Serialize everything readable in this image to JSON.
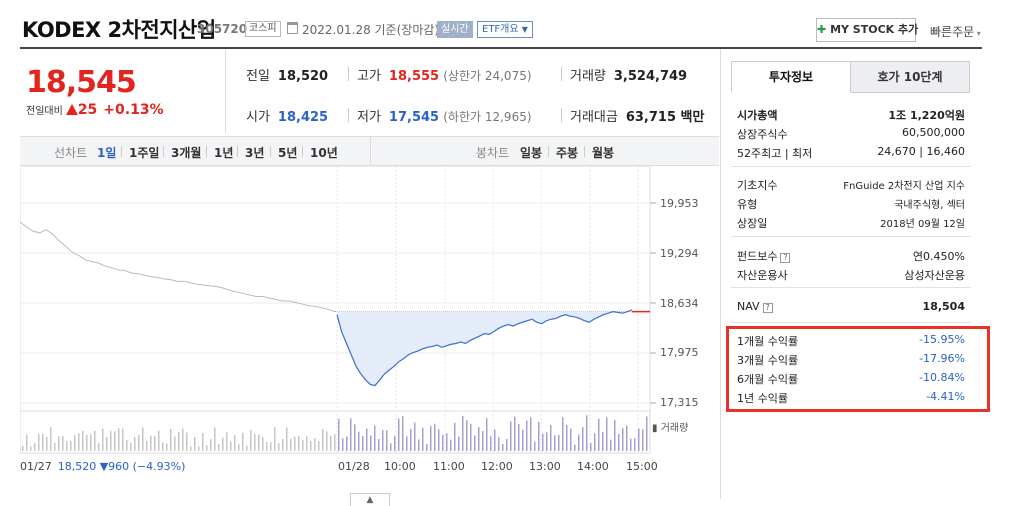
{
  "header": {
    "title": "KODEX 2차전지산업",
    "code": "305720",
    "market_badge": "코스피",
    "date": "2022.01.28 기준(장마감)",
    "live_badge": "실시간",
    "etf_badge": "ETF개요",
    "mystock_label": "MY STOCK 추가",
    "quick_order_label": "빠른주문"
  },
  "price": {
    "current": "18,545",
    "change_label": "전일대비",
    "change_value": "25",
    "change_pct": "+0.13%"
  },
  "stats": {
    "prev_close_label": "전일",
    "prev_close": "18,520",
    "high_label": "고가",
    "high": "18,555",
    "upper_limit_label": "(상한가 24,075)",
    "volume_label": "거래량",
    "volume": "3,524,749",
    "open_label": "시가",
    "open": "18,425",
    "low_label": "저가",
    "low": "17,545",
    "lower_limit_label": "(하한가 12,965)",
    "amount_label": "거래대금",
    "amount": "63,715 백만"
  },
  "chart_tabs": {
    "line_label": "선차트",
    "periods": [
      "1일",
      "1주일",
      "3개월",
      "1년",
      "3년",
      "5년",
      "10년"
    ],
    "candle_label": "봉차트",
    "candles": [
      "일봉",
      "주봉",
      "월봉"
    ]
  },
  "chart_data": {
    "type": "line",
    "y_ticks": [
      "19,953",
      "19,294",
      "18,634",
      "17,975",
      "17,315"
    ],
    "ylim": [
      17315,
      19953
    ],
    "x_ticks": [
      "01/27",
      "01/28",
      "10:00",
      "11:00",
      "12:00",
      "13:00",
      "14:00",
      "15:00"
    ],
    "prev_close_reference": 18520,
    "series": [
      {
        "values_prev_day": [
          19700,
          19640,
          19580,
          19560,
          19600,
          19540,
          19450,
          19380,
          19300,
          19260,
          19200,
          19180,
          19160,
          19120,
          19100,
          19070,
          19060,
          19030,
          19020,
          19000,
          18980,
          18970,
          18950,
          18940,
          18920,
          18920,
          18900,
          18880,
          18870,
          18860,
          18850,
          18830,
          18800,
          18780,
          18760,
          18740,
          18720,
          18720,
          18700,
          18680,
          18660,
          18660,
          18640,
          18620,
          18600,
          18590,
          18570,
          18550,
          18520
        ],
        "values_today": [
          18480,
          18250,
          18100,
          17950,
          17800,
          17700,
          17620,
          17560,
          17545,
          17620,
          17700,
          17750,
          17800,
          17860,
          17900,
          17950,
          17980,
          18000,
          18030,
          18050,
          18060,
          18080,
          18050,
          18070,
          18090,
          18100,
          18120,
          18100,
          18140,
          18170,
          18200,
          18230,
          18220,
          18260,
          18300,
          18330,
          18350,
          18330,
          18360,
          18380,
          18400,
          18420,
          18380,
          18360,
          18400,
          18420,
          18430,
          18460,
          18480,
          18460,
          18450,
          18430,
          18400,
          18380,
          18420,
          18450,
          18480,
          18500,
          18520,
          18510,
          18500,
          18520,
          18545
        ]
      }
    ],
    "volume_label": "거래량"
  },
  "prev_info": {
    "date": "01/27",
    "price": "18,520 ▼960 (−4.93%)"
  },
  "right_panel": {
    "tab_active": "투자정보",
    "tab_inactive": "호가 10단계",
    "market_cap_label": "시가총액",
    "market_cap": "1조 1,220억원",
    "shares_label": "상장주식수",
    "shares": "60,500,000",
    "w52_label": "52주최고 | 최저",
    "w52": "24,670 | 16,460",
    "base_index_label": "기초지수",
    "base_index": "FnGuide 2차전지 산업 지수",
    "type_label": "유형",
    "type": "국내주식형, 섹터",
    "listing_label": "상장일",
    "listing": "2018년 09월 12일",
    "fee_label": "펀드보수",
    "fee": "연0.450%",
    "manager_label": "자산운용사",
    "manager": "삼성자산운용",
    "nav_label": "NAV",
    "nav": "18,504",
    "returns": [
      {
        "label": "1개월 수익률",
        "value": "-15.95%"
      },
      {
        "label": "3개월 수익률",
        "value": "-17.96%"
      },
      {
        "label": "6개월 수익률",
        "value": "-10.84%"
      },
      {
        "label": "1년 수익률",
        "value": "-4.41%"
      }
    ]
  }
}
